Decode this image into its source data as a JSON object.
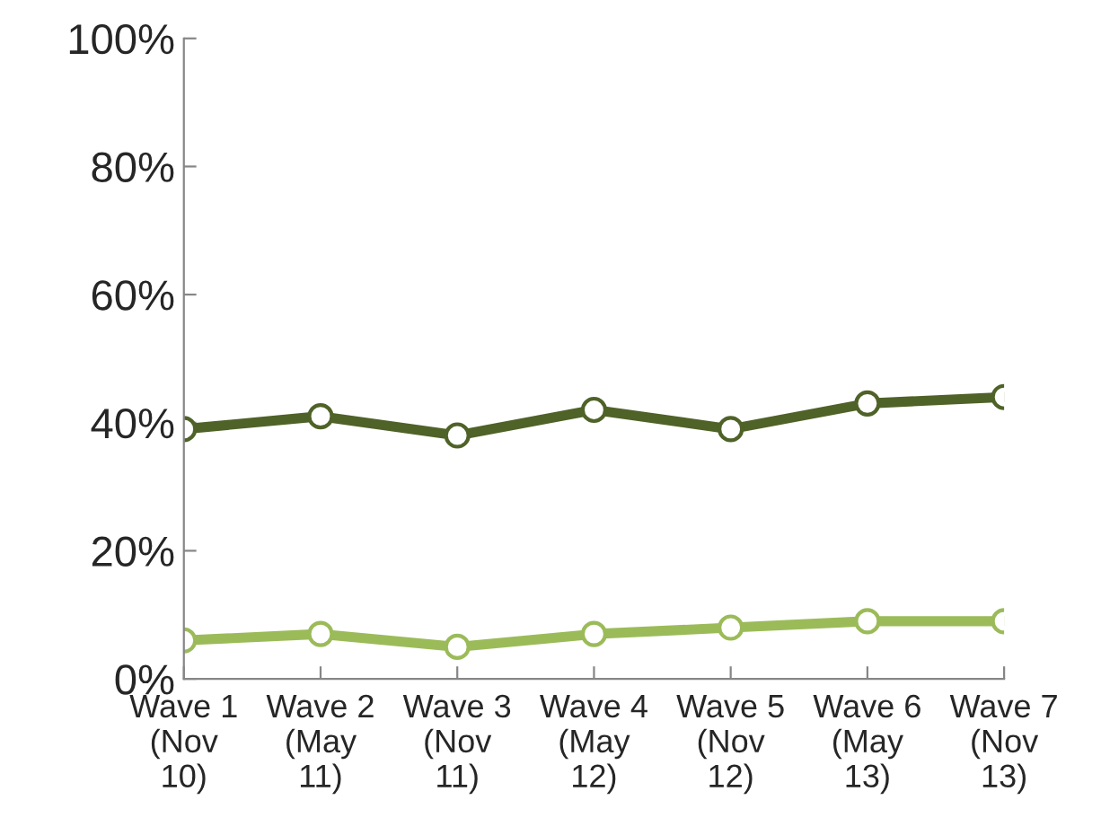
{
  "chart_data": {
    "type": "line",
    "categories": [
      "Wave 1\n(Nov\n10)",
      "Wave 2\n(May\n11)",
      "Wave 3\n(Nov\n11)",
      "Wave 4\n(May\n12)",
      "Wave 5\n(Nov\n12)",
      "Wave 6\n(May\n13)",
      "Wave 7\n(Nov\n13)"
    ],
    "series": [
      {
        "color": "#4f6228",
        "values": [
          39,
          41,
          38,
          42,
          39,
          43,
          44
        ]
      },
      {
        "color": "#9bbb59",
        "values": [
          6,
          7,
          5,
          7,
          8,
          9,
          9
        ]
      }
    ],
    "ylim": [
      0,
      100
    ],
    "yticks": [
      {
        "value": 0,
        "label": "0%"
      },
      {
        "value": 20,
        "label": "20%"
      },
      {
        "value": 40,
        "label": "40%"
      },
      {
        "value": 60,
        "label": "60%"
      },
      {
        "value": 80,
        "label": "80%"
      },
      {
        "value": 100,
        "label": "100%"
      }
    ],
    "grid": false,
    "legend": false,
    "marker": "circle",
    "line_style": "solid"
  }
}
